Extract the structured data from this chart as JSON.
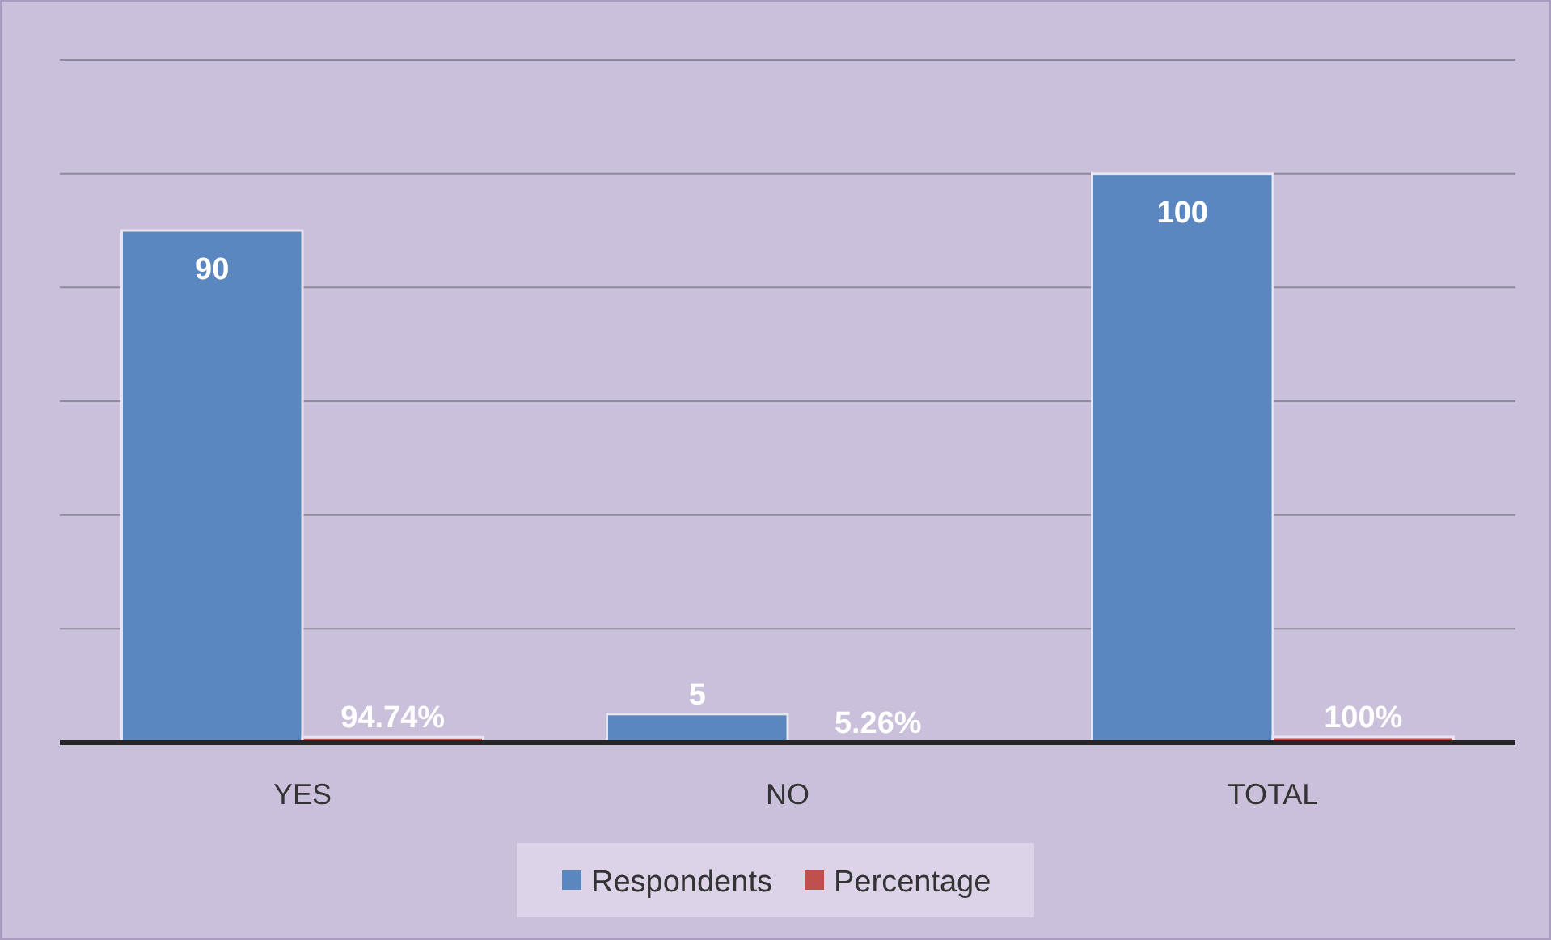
{
  "chart_data": {
    "type": "bar",
    "categories": [
      "YES",
      "NO",
      "TOTAL"
    ],
    "series": [
      {
        "name": "Respondents",
        "color": "#5b87c0",
        "values": [
          90,
          5,
          100
        ],
        "value_labels": [
          "90",
          "5",
          "100"
        ]
      },
      {
        "name": "Percentage",
        "color": "#c0504d",
        "values": [
          0.9474,
          0.0526,
          1
        ],
        "value_labels": [
          "94.74%",
          "5.26%",
          "100%"
        ]
      }
    ],
    "ylim": [
      0,
      120
    ],
    "yticks": [
      {
        "value": 0,
        "label": null
      },
      {
        "value": 20,
        "label": null
      },
      {
        "value": 40,
        "label": null
      },
      {
        "value": 60,
        "label": null
      },
      {
        "value": 80,
        "label": null
      },
      {
        "value": 100,
        "label": null
      },
      {
        "value": 120,
        "label": null
      }
    ],
    "tick_labels": "x",
    "grid": "y",
    "legend": "bottom"
  }
}
